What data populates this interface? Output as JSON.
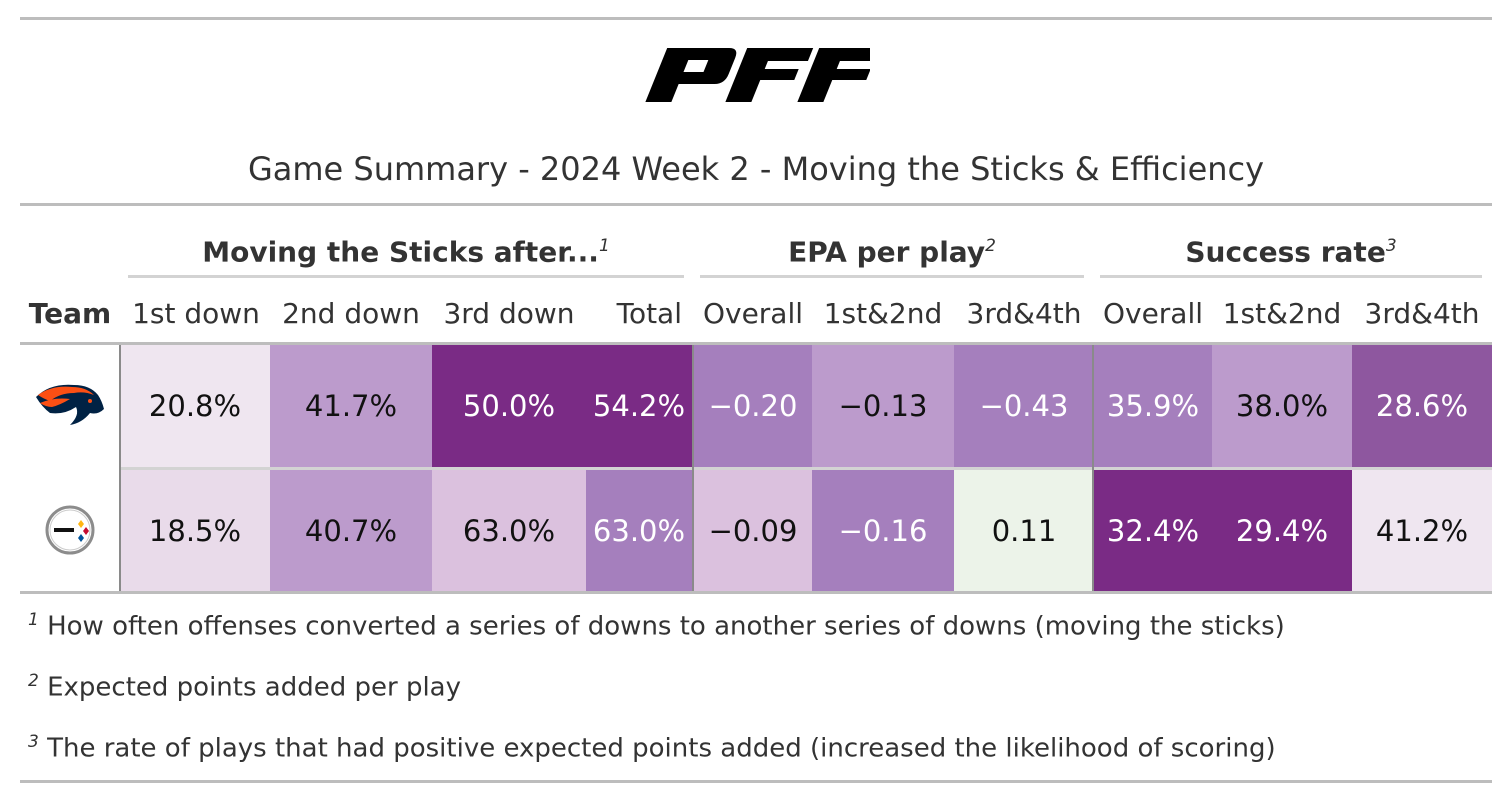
{
  "header": {
    "logo_text": "PFF",
    "title": "Game Summary - 2024 Week 2 - Moving the Sticks & Efficiency"
  },
  "spanners": [
    {
      "label": "Moving the Sticks after...",
      "footnote": "1"
    },
    {
      "label": "EPA per play",
      "footnote": "2"
    },
    {
      "label": "Success rate",
      "footnote": "3"
    }
  ],
  "columns": [
    "Team",
    "1st down",
    "2nd down",
    "3rd down",
    "Total",
    "Overall",
    "1st&2nd",
    "3rd&4th",
    "Overall",
    "1st&2nd",
    "3rd&4th"
  ],
  "teams": [
    {
      "logo": "denver-broncos-logo-icon"
    },
    {
      "logo": "pittsburgh-steelers-logo-icon"
    }
  ],
  "colors": {
    "broncos_orange": "#FB4F14",
    "broncos_navy": "#002244",
    "steelers_gold": "#FFB612",
    "steelers_red": "#C60C30",
    "steelers_blue": "#00539B"
  },
  "chart_data": {
    "type": "table",
    "title": "Game Summary - 2024 Week 2 - Moving the Sticks & Efficiency",
    "column_groups": [
      {
        "name": "Moving the Sticks after...",
        "columns": [
          "1st down",
          "2nd down",
          "3rd down",
          "Total"
        ]
      },
      {
        "name": "EPA per play",
        "columns": [
          "Overall",
          "1st&2nd",
          "3rd&4th"
        ]
      },
      {
        "name": "Success rate",
        "columns": [
          "Overall",
          "1st&2nd",
          "3rd&4th"
        ]
      }
    ],
    "rows": [
      {
        "team_logo": "denver-broncos-logo-icon",
        "values": [
          "20.8%",
          "41.7%",
          "50.0%",
          "54.2%",
          "−0.20",
          "−0.13",
          "−0.43",
          "35.9%",
          "38.0%",
          "28.6%"
        ],
        "fills": [
          "#EFE6F0",
          "#BC9BCC",
          "#7A2B85",
          "#7A2B85",
          "#A57FBD",
          "#BC9BCC",
          "#A57FBD",
          "#A57FBD",
          "#BC9BCC",
          "#8E579F"
        ],
        "light_text": [
          false,
          false,
          true,
          true,
          true,
          false,
          true,
          true,
          false,
          true
        ]
      },
      {
        "team_logo": "pittsburgh-steelers-logo-icon",
        "values": [
          "18.5%",
          "40.7%",
          "63.0%",
          "63.0%",
          "−0.09",
          "−0.16",
          "0.11",
          "32.4%",
          "29.4%",
          "41.2%"
        ],
        "fills": [
          "#E9DBEA",
          "#BC9BCC",
          "#DBC1DE",
          "#A57FBD",
          "#DBC1DE",
          "#A57FBD",
          "#ECF3E9",
          "#7A2B85",
          "#7A2B85",
          "#EFE6F0"
        ],
        "light_text": [
          false,
          false,
          false,
          true,
          false,
          true,
          false,
          true,
          true,
          false
        ]
      }
    ]
  },
  "footnotes": [
    {
      "mark": "1",
      "text": "How often offenses converted a series of downs to another series of downs (moving the sticks)"
    },
    {
      "mark": "2",
      "text": "Expected points added per play"
    },
    {
      "mark": "3",
      "text": "The rate of plays that had positive expected points added (increased the likelihood of scoring)"
    }
  ]
}
